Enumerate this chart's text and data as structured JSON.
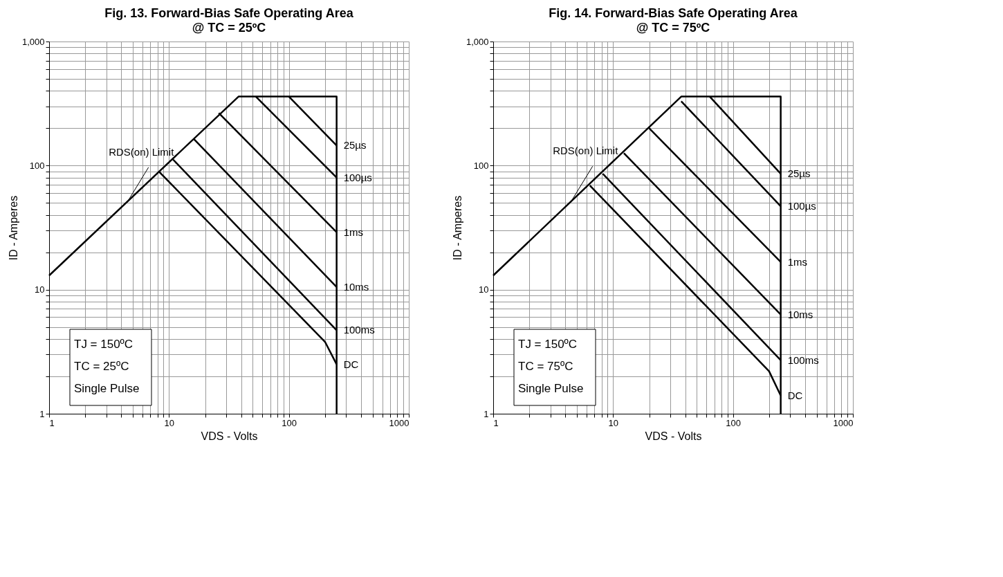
{
  "chart_data": [
    {
      "type": "line",
      "title": "Fig. 13. Forward-Bias Safe Operating Area",
      "subtitle": "@ TC = 25ºC",
      "xlabel": "VDS - Volts",
      "ylabel": "ID - Amperes",
      "xlim": [
        1,
        1000
      ],
      "ylim": [
        1,
        1000
      ],
      "log": "xy",
      "grid": true,
      "legend": false,
      "xticks": [
        1,
        {
          "value": 2,
          "label": null
        },
        {
          "value": 3,
          "label": null
        },
        {
          "value": 4,
          "label": null
        },
        {
          "value": 5,
          "label": null
        },
        {
          "value": 6,
          "label": null
        },
        {
          "value": 7,
          "label": null
        },
        {
          "value": 8,
          "label": null
        },
        {
          "value": 9,
          "label": null
        },
        10,
        {
          "value": 20,
          "label": null
        },
        {
          "value": 30,
          "label": null
        },
        {
          "value": 40,
          "label": null
        },
        {
          "value": 50,
          "label": null
        },
        {
          "value": 60,
          "label": null
        },
        {
          "value": 70,
          "label": null
        },
        {
          "value": 80,
          "label": null
        },
        {
          "value": 90,
          "label": null
        },
        100,
        {
          "value": 200,
          "label": null
        },
        {
          "value": 300,
          "label": null
        },
        {
          "value": 400,
          "label": null
        },
        {
          "value": 500,
          "label": null
        },
        {
          "value": 600,
          "label": null
        },
        {
          "value": 700,
          "label": null
        },
        {
          "value": 800,
          "label": null
        },
        {
          "value": 900,
          "label": null
        },
        1000
      ],
      "yticks": [
        1,
        {
          "value": 2,
          "label": null
        },
        {
          "value": 3,
          "label": null
        },
        {
          "value": 4,
          "label": null
        },
        {
          "value": 5,
          "label": null
        },
        {
          "value": 6,
          "label": null
        },
        {
          "value": 7,
          "label": null
        },
        {
          "value": 8,
          "label": null
        },
        {
          "value": 9,
          "label": null
        },
        10,
        {
          "value": 20,
          "label": null
        },
        {
          "value": 30,
          "label": null
        },
        {
          "value": 40,
          "label": null
        },
        {
          "value": 50,
          "label": null
        },
        {
          "value": 60,
          "label": null
        },
        {
          "value": 70,
          "label": null
        },
        {
          "value": 80,
          "label": null
        },
        {
          "value": 90,
          "label": null
        },
        100,
        {
          "value": 200,
          "label": null
        },
        {
          "value": 300,
          "label": null
        },
        {
          "value": 400,
          "label": null
        },
        {
          "value": 500,
          "label": null
        },
        {
          "value": 600,
          "label": null
        },
        {
          "value": 700,
          "label": null
        },
        {
          "value": 800,
          "label": null
        },
        {
          "value": 900,
          "label": null
        },
        {
          "value": 1000,
          "label": "1,000"
        }
      ],
      "series": [
        {
          "color": "#000000",
          "x": [
            1,
            38,
            250,
            250
          ],
          "values": [
            13,
            360,
            360,
            1
          ]
        },
        {
          "name": "25µs",
          "color": "#000000",
          "x": [
            100,
            250
          ],
          "values": [
            360,
            145
          ]
        },
        {
          "name": "100µs",
          "color": "#000000",
          "x": [
            53,
            250
          ],
          "values": [
            360,
            80
          ]
        },
        {
          "name": "1ms",
          "color": "#000000",
          "x": [
            26,
            250
          ],
          "values": [
            265,
            29
          ]
        },
        {
          "name": "10ms",
          "color": "#000000",
          "x": [
            16,
            250
          ],
          "values": [
            165,
            10.5
          ]
        },
        {
          "name": "100ms",
          "color": "#000000",
          "x": [
            10.8,
            250
          ],
          "values": [
            112,
            4.7
          ]
        },
        {
          "name": "DC",
          "color": "#000000",
          "x": [
            8.2,
            200,
            250
          ],
          "values": [
            90,
            3.8,
            2.5
          ]
        }
      ],
      "annotations": [
        {
          "text": "RDS(on) Limit",
          "x": 4.5,
          "y": 51
        },
        "TJ = 150ºC",
        "TC = 25ºC",
        "Single Pulse"
      ]
    },
    {
      "type": "line",
      "title": "Fig. 14. Forward-Bias Safe Operating Area",
      "subtitle": "@ TC = 75ºC",
      "xlabel": "VDS - Volts",
      "ylabel": "ID - Amperes",
      "xlim": [
        1,
        1000
      ],
      "ylim": [
        1,
        1000
      ],
      "log": "xy",
      "grid": true,
      "legend": false,
      "xticks": [
        1,
        {
          "value": 2,
          "label": null
        },
        {
          "value": 3,
          "label": null
        },
        {
          "value": 4,
          "label": null
        },
        {
          "value": 5,
          "label": null
        },
        {
          "value": 6,
          "label": null
        },
        {
          "value": 7,
          "label": null
        },
        {
          "value": 8,
          "label": null
        },
        {
          "value": 9,
          "label": null
        },
        10,
        {
          "value": 20,
          "label": null
        },
        {
          "value": 30,
          "label": null
        },
        {
          "value": 40,
          "label": null
        },
        {
          "value": 50,
          "label": null
        },
        {
          "value": 60,
          "label": null
        },
        {
          "value": 70,
          "label": null
        },
        {
          "value": 80,
          "label": null
        },
        {
          "value": 90,
          "label": null
        },
        100,
        {
          "value": 200,
          "label": null
        },
        {
          "value": 300,
          "label": null
        },
        {
          "value": 400,
          "label": null
        },
        {
          "value": 500,
          "label": null
        },
        {
          "value": 600,
          "label": null
        },
        {
          "value": 700,
          "label": null
        },
        {
          "value": 800,
          "label": null
        },
        {
          "value": 900,
          "label": null
        },
        1000
      ],
      "yticks": [
        1,
        {
          "value": 2,
          "label": null
        },
        {
          "value": 3,
          "label": null
        },
        {
          "value": 4,
          "label": null
        },
        {
          "value": 5,
          "label": null
        },
        {
          "value": 6,
          "label": null
        },
        {
          "value": 7,
          "label": null
        },
        {
          "value": 8,
          "label": null
        },
        {
          "value": 9,
          "label": null
        },
        10,
        {
          "value": 20,
          "label": null
        },
        {
          "value": 30,
          "label": null
        },
        {
          "value": 40,
          "label": null
        },
        {
          "value": 50,
          "label": null
        },
        {
          "value": 60,
          "label": null
        },
        {
          "value": 70,
          "label": null
        },
        {
          "value": 80,
          "label": null
        },
        {
          "value": 90,
          "label": null
        },
        100,
        {
          "value": 200,
          "label": null
        },
        {
          "value": 300,
          "label": null
        },
        {
          "value": 400,
          "label": null
        },
        {
          "value": 500,
          "label": null
        },
        {
          "value": 600,
          "label": null
        },
        {
          "value": 700,
          "label": null
        },
        {
          "value": 800,
          "label": null
        },
        {
          "value": 900,
          "label": null
        },
        {
          "value": 1000,
          "label": "1,000"
        }
      ],
      "series": [
        {
          "color": "#000000",
          "x": [
            1,
            37,
            250,
            250
          ],
          "values": [
            13,
            360,
            360,
            1
          ]
        },
        {
          "name": "25µs",
          "color": "#000000",
          "x": [
            64,
            250
          ],
          "values": [
            360,
            86
          ]
        },
        {
          "name": "100µs",
          "color": "#000000",
          "x": [
            37,
            250
          ],
          "values": [
            330,
            47
          ]
        },
        {
          "name": "1ms",
          "color": "#000000",
          "x": [
            20,
            250
          ],
          "values": [
            200,
            16.7
          ]
        },
        {
          "name": "10ms",
          "color": "#000000",
          "x": [
            12.3,
            250
          ],
          "values": [
            126,
            6.3
          ]
        },
        {
          "name": "100ms",
          "color": "#000000",
          "x": [
            8.2,
            250
          ],
          "values": [
            86,
            2.7
          ]
        },
        {
          "name": "DC",
          "color": "#000000",
          "x": [
            6.4,
            200,
            250
          ],
          "values": [
            69,
            2.2,
            1.4
          ]
        }
      ],
      "annotations": [
        {
          "text": "RDS(on) Limit",
          "x": 4.5,
          "y": 52
        },
        "TJ = 150ºC",
        "TC = 75ºC",
        "Single Pulse"
      ]
    }
  ]
}
